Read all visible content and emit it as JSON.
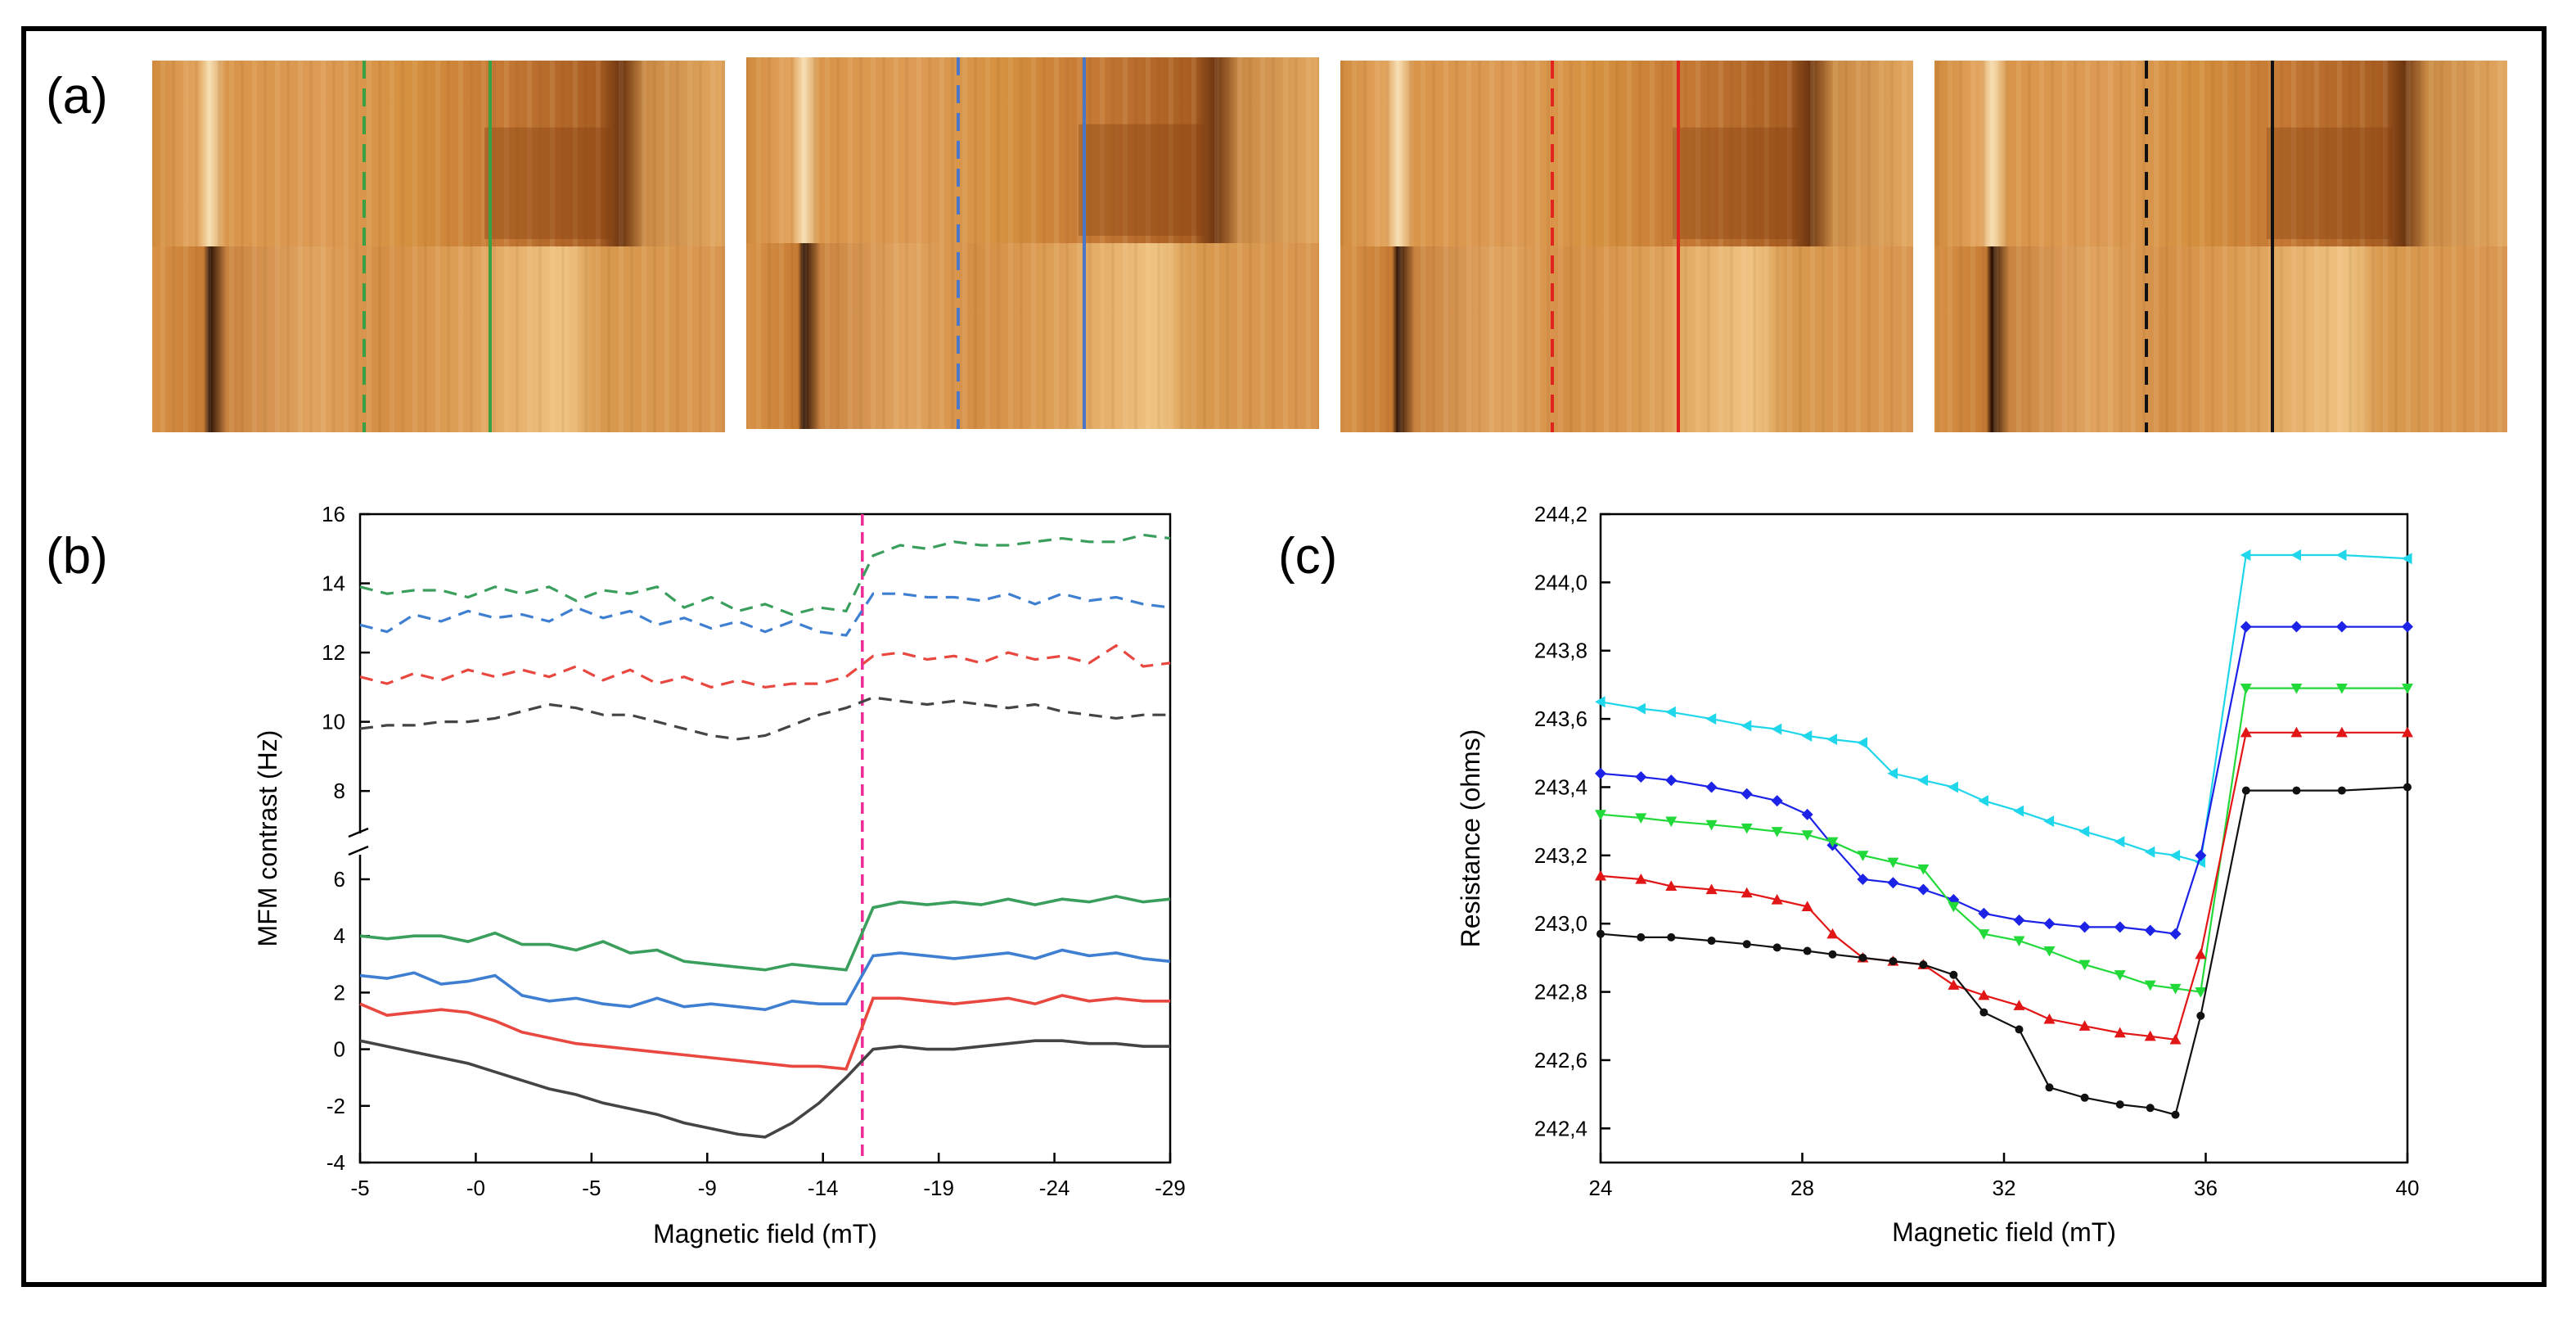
{
  "figure": {
    "panel_labels": {
      "a": "(a)",
      "b": "(b)",
      "c": "(c)"
    }
  },
  "colors": {
    "green": "#3a9e5c",
    "blue": "#3f7fd2",
    "red": "#e8483f",
    "black": "#444444",
    "magenta": "#ee2b96",
    "cyan_c": "#1fd6ea",
    "blue_c": "#1c22e6",
    "green_c": "#22d93a",
    "red_c": "#e21616",
    "black_c": "#111111",
    "afm_base": "#d99548"
  },
  "mfm_images": [
    {
      "marker": "green",
      "dashed_color": "#3aa046",
      "solid_color": "#3aa046"
    },
    {
      "marker": "blue",
      "dashed_color": "#4b78c6",
      "solid_color": "#4b78c6"
    },
    {
      "marker": "red",
      "dashed_color": "#e0231f",
      "solid_color": "#e0231f"
    },
    {
      "marker": "black",
      "dashed_color": "#111111",
      "solid_color": "#111111"
    }
  ],
  "chart_data": [
    {
      "id": "b",
      "type": "line",
      "xlabel": "Magnetic field (mT)",
      "ylabel": "MFM contrast (Hz)",
      "x_ticks": [
        "-5",
        "-0",
        "-5",
        "-9",
        "-14",
        "-19",
        "-24",
        "-29"
      ],
      "y_ticks_lower": [
        "-4",
        "-2",
        "0",
        "2",
        "4",
        "6"
      ],
      "y_ticks_upper": [
        "8",
        "10",
        "12",
        "14",
        "16"
      ],
      "axis_break": "between 6 and 8",
      "vline_position": "-14 mT (after reversal of field)",
      "series": [
        {
          "name": "green dashed",
          "color": "green",
          "style": "dashed",
          "values": [
            13.9,
            13.7,
            13.8,
            13.8,
            13.6,
            13.9,
            13.7,
            13.9,
            13.5,
            13.8,
            13.7,
            13.9,
            13.3,
            13.6,
            13.2,
            13.4,
            13.1,
            13.3,
            13.2,
            14.8,
            15.1,
            15.0,
            15.2,
            15.1,
            15.1,
            15.2,
            15.3,
            15.2,
            15.2,
            15.4,
            15.3
          ]
        },
        {
          "name": "blue dashed",
          "color": "blue",
          "style": "dashed",
          "values": [
            12.8,
            12.6,
            13.1,
            12.9,
            13.2,
            13.0,
            13.1,
            12.9,
            13.3,
            13.0,
            13.2,
            12.8,
            13.0,
            12.7,
            12.9,
            12.6,
            12.9,
            12.6,
            12.5,
            13.7,
            13.7,
            13.6,
            13.6,
            13.5,
            13.7,
            13.4,
            13.7,
            13.5,
            13.6,
            13.4,
            13.3
          ]
        },
        {
          "name": "red dashed",
          "color": "red",
          "style": "dashed",
          "values": [
            11.3,
            11.1,
            11.4,
            11.2,
            11.5,
            11.3,
            11.5,
            11.3,
            11.6,
            11.2,
            11.5,
            11.1,
            11.3,
            11.0,
            11.2,
            11.0,
            11.1,
            11.1,
            11.3,
            11.9,
            12.0,
            11.8,
            11.9,
            11.7,
            12.0,
            11.8,
            11.9,
            11.7,
            12.2,
            11.6,
            11.7
          ]
        },
        {
          "name": "black dashed",
          "color": "black",
          "style": "dashed",
          "values": [
            9.8,
            9.9,
            9.9,
            10.0,
            10.0,
            10.1,
            10.3,
            10.5,
            10.4,
            10.2,
            10.2,
            10.0,
            9.8,
            9.6,
            9.5,
            9.6,
            9.9,
            10.2,
            10.4,
            10.7,
            10.6,
            10.5,
            10.6,
            10.5,
            10.4,
            10.5,
            10.3,
            10.2,
            10.1,
            10.2,
            10.2
          ]
        },
        {
          "name": "green",
          "color": "green",
          "style": "solid",
          "values": [
            4.0,
            3.9,
            4.0,
            4.0,
            3.8,
            4.1,
            3.7,
            3.7,
            3.5,
            3.8,
            3.4,
            3.5,
            3.1,
            3.0,
            2.9,
            2.8,
            3.0,
            2.9,
            2.8,
            5.0,
            5.2,
            5.1,
            5.2,
            5.1,
            5.3,
            5.1,
            5.3,
            5.2,
            5.4,
            5.2,
            5.3
          ]
        },
        {
          "name": "blue",
          "color": "blue",
          "style": "solid",
          "values": [
            2.6,
            2.5,
            2.7,
            2.3,
            2.4,
            2.6,
            1.9,
            1.7,
            1.8,
            1.6,
            1.5,
            1.8,
            1.5,
            1.6,
            1.5,
            1.4,
            1.7,
            1.6,
            1.6,
            3.3,
            3.4,
            3.3,
            3.2,
            3.3,
            3.4,
            3.2,
            3.5,
            3.3,
            3.4,
            3.2,
            3.1
          ]
        },
        {
          "name": "red",
          "color": "red",
          "style": "solid",
          "values": [
            1.6,
            1.2,
            1.3,
            1.4,
            1.3,
            1.0,
            0.6,
            0.4,
            0.2,
            0.1,
            0.0,
            -0.1,
            -0.2,
            -0.3,
            -0.4,
            -0.5,
            -0.6,
            -0.6,
            -0.7,
            1.8,
            1.8,
            1.7,
            1.6,
            1.7,
            1.8,
            1.6,
            1.9,
            1.7,
            1.8,
            1.7,
            1.7
          ]
        },
        {
          "name": "black",
          "color": "black",
          "style": "solid",
          "values": [
            0.3,
            0.1,
            -0.1,
            -0.3,
            -0.5,
            -0.8,
            -1.1,
            -1.4,
            -1.6,
            -1.9,
            -2.1,
            -2.3,
            -2.6,
            -2.8,
            -3.0,
            -3.1,
            -2.6,
            -1.9,
            -1.0,
            0.0,
            0.1,
            0.0,
            0.0,
            0.1,
            0.2,
            0.3,
            0.3,
            0.2,
            0.2,
            0.1,
            0.1
          ]
        }
      ]
    },
    {
      "id": "c",
      "type": "line",
      "xlabel": "Magnetic field (mT)",
      "ylabel": "Resistance (ohms)",
      "xlim": [
        24,
        40
      ],
      "ylim": [
        242.3,
        244.2
      ],
      "x_ticks": [
        "24",
        "28",
        "32",
        "36",
        "40"
      ],
      "y_ticks": [
        "242,4",
        "242,6",
        "242,8",
        "243,0",
        "243,2",
        "243,4",
        "243,6",
        "243,8",
        "244,0",
        "244,2"
      ],
      "x": [
        24.0,
        24.8,
        25.4,
        26.2,
        26.9,
        27.5,
        28.1,
        28.6,
        29.2,
        29.8,
        30.4,
        31.0,
        31.6,
        32.3,
        32.9,
        33.6,
        34.3,
        34.9,
        35.4,
        35.9,
        36.8,
        37.8,
        38.7,
        40.0
      ],
      "series": [
        {
          "name": "cyan",
          "color": "cyan_c",
          "marker": "triangle-left",
          "values": [
            243.65,
            243.63,
            243.62,
            243.6,
            243.58,
            243.57,
            243.55,
            243.54,
            243.53,
            243.44,
            243.42,
            243.4,
            243.36,
            243.33,
            243.3,
            243.27,
            243.24,
            243.21,
            243.2,
            243.18,
            244.08,
            244.08,
            244.08,
            244.07
          ]
        },
        {
          "name": "blue",
          "color": "blue_c",
          "marker": "diamond",
          "values": [
            243.44,
            243.43,
            243.42,
            243.4,
            243.38,
            243.36,
            243.32,
            243.23,
            243.13,
            243.12,
            243.1,
            243.07,
            243.03,
            243.01,
            243.0,
            242.99,
            242.99,
            242.98,
            242.97,
            243.2,
            243.87,
            243.87,
            243.87,
            243.87
          ]
        },
        {
          "name": "green",
          "color": "green_c",
          "marker": "triangle-down",
          "values": [
            243.32,
            243.31,
            243.3,
            243.29,
            243.28,
            243.27,
            243.26,
            243.24,
            243.2,
            243.18,
            243.16,
            243.05,
            242.97,
            242.95,
            242.92,
            242.88,
            242.85,
            242.82,
            242.81,
            242.8,
            243.69,
            243.69,
            243.69,
            243.69
          ]
        },
        {
          "name": "red",
          "color": "red_c",
          "marker": "triangle-up",
          "values": [
            243.14,
            243.13,
            243.11,
            243.1,
            243.09,
            243.07,
            243.05,
            242.97,
            242.9,
            242.89,
            242.88,
            242.82,
            242.79,
            242.76,
            242.72,
            242.7,
            242.68,
            242.67,
            242.66,
            242.91,
            243.56,
            243.56,
            243.56,
            243.56
          ]
        },
        {
          "name": "black",
          "color": "black_c",
          "marker": "circle",
          "values": [
            242.97,
            242.96,
            242.96,
            242.95,
            242.94,
            242.93,
            242.92,
            242.91,
            242.9,
            242.89,
            242.88,
            242.85,
            242.74,
            242.69,
            242.52,
            242.49,
            242.47,
            242.46,
            242.44,
            242.73,
            243.39,
            243.39,
            243.39,
            243.4
          ]
        }
      ]
    }
  ]
}
